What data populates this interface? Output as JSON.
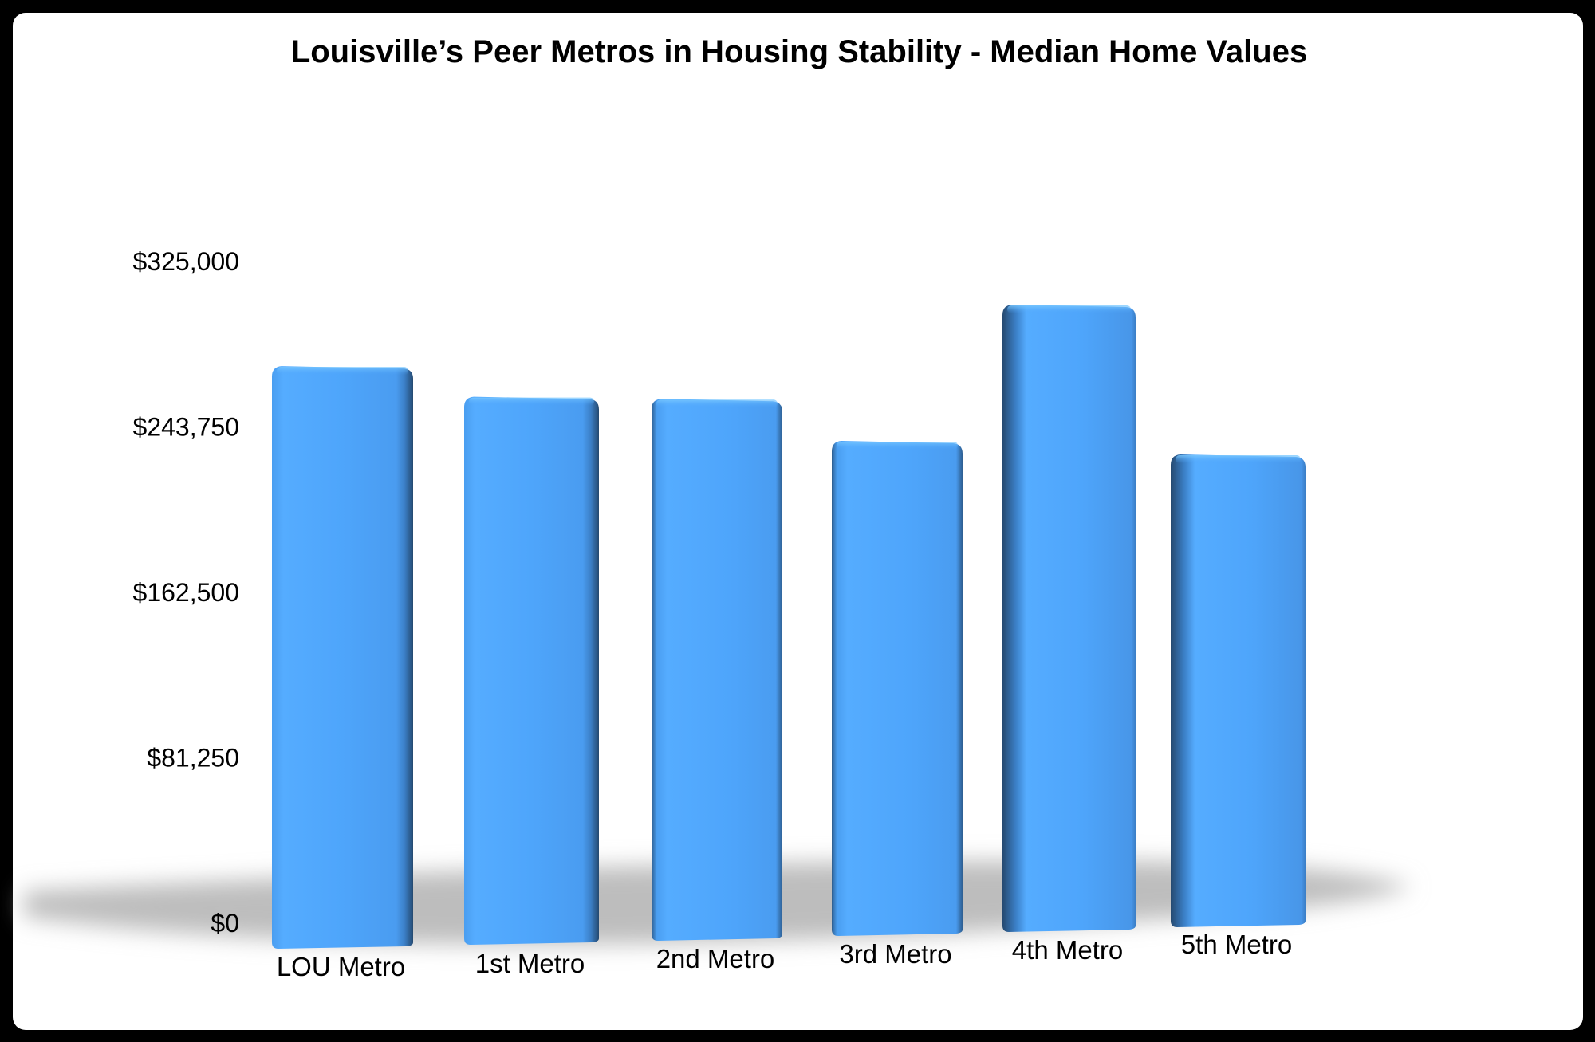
{
  "chart_data": {
    "type": "bar",
    "title": "Louisville’s Peer Metros in Housing Stability - Median Home Values",
    "xlabel": "",
    "ylabel": "",
    "categories": [
      "LOU Metro",
      "1st Metro",
      "2nd Metro",
      "3rd Metro",
      "4th Metro",
      "5th Metro"
    ],
    "series": [
      {
        "name": "Median Home Value",
        "values": [
          285000,
          268000,
          265000,
          242000,
          307000,
          231000
        ]
      }
    ],
    "ylim": [
      0,
      325000
    ],
    "yticks": [
      0,
      81250,
      162500,
      243750,
      325000
    ],
    "ytick_labels": [
      "$0",
      "$81,250",
      "$162,500",
      "$243,750",
      "$325,000"
    ],
    "grid": false,
    "legend": "none",
    "style": "3d-perspective",
    "colors": {
      "bar_face": "#4ea5fb",
      "bar_side": "#2c5a8a",
      "bar_highlight": "#6cc0ff",
      "shadow": "#bdbdbd",
      "frame": "#000000",
      "background": "#ffffff"
    }
  }
}
